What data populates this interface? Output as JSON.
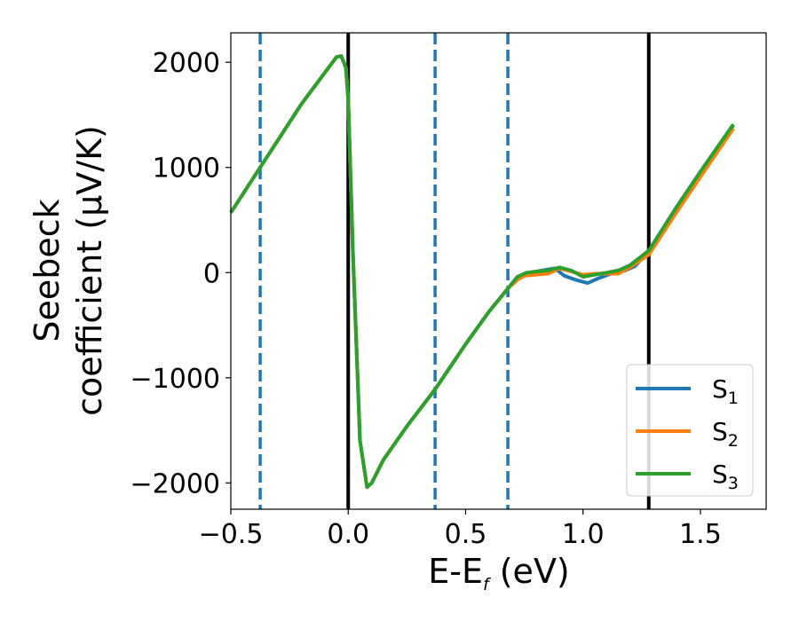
{
  "chart_data": {
    "type": "line",
    "xlabel": {
      "main": "E-E",
      "sub": "f",
      "unit": " (eV)"
    },
    "ylabel": {
      "line1": "Seebeck",
      "line2": "coefficient  (μV/K)"
    },
    "xlim": [
      -0.5,
      1.78
    ],
    "ylim": [
      -2250,
      2280
    ],
    "xticks": [
      -0.5,
      0.0,
      0.5,
      1.0,
      1.5
    ],
    "xtick_labels": [
      "−0.5",
      "0.0",
      "0.5",
      "1.0",
      "1.5"
    ],
    "yticks": [
      -2000,
      -1000,
      0,
      1000,
      2000
    ],
    "ytick_labels": [
      "−2000",
      "−1000",
      "0",
      "1000",
      "2000"
    ],
    "grid": false,
    "legend_position": "bottom-right",
    "vlines": [
      {
        "x": -0.375,
        "style": "dashed",
        "color": "#1f77b4"
      },
      {
        "x": 0.0,
        "style": "solid",
        "color": "#000000"
      },
      {
        "x": 0.37,
        "style": "dashed",
        "color": "#1f77b4"
      },
      {
        "x": 0.68,
        "style": "dashed",
        "color": "#1f77b4"
      },
      {
        "x": 1.28,
        "style": "solid",
        "color": "#000000"
      }
    ],
    "series": [
      {
        "name": "S",
        "sub": "1",
        "color": "#1f77b4",
        "x": [
          -0.5,
          -0.375,
          -0.2,
          -0.05,
          -0.03,
          -0.01,
          0.0,
          0.02,
          0.05,
          0.08,
          0.1,
          0.15,
          0.25,
          0.37,
          0.5,
          0.6,
          0.68,
          0.72,
          0.75,
          0.8,
          0.85,
          0.88,
          0.92,
          0.97,
          1.02,
          1.07,
          1.12,
          1.18,
          1.22,
          1.28,
          1.4,
          1.5,
          1.64
        ],
        "y": [
          570,
          1000,
          1600,
          2050,
          2060,
          1950,
          1650,
          200,
          -1600,
          -2040,
          -2000,
          -1780,
          -1460,
          -1110,
          -680,
          -370,
          -150,
          -60,
          -10,
          10,
          30,
          40,
          -30,
          -70,
          -100,
          -50,
          -10,
          20,
          60,
          200,
          620,
          950,
          1400
        ]
      },
      {
        "name": "S",
        "sub": "2",
        "color": "#ff7f0e",
        "x": [
          -0.5,
          -0.375,
          -0.2,
          -0.05,
          -0.03,
          -0.01,
          0.0,
          0.02,
          0.05,
          0.08,
          0.1,
          0.15,
          0.25,
          0.37,
          0.5,
          0.6,
          0.68,
          0.72,
          0.75,
          0.8,
          0.85,
          0.9,
          0.95,
          1.0,
          1.05,
          1.1,
          1.15,
          1.2,
          1.28,
          1.4,
          1.5,
          1.64
        ],
        "y": [
          570,
          1000,
          1600,
          2050,
          2060,
          1950,
          1650,
          200,
          -1600,
          -2040,
          -2000,
          -1780,
          -1460,
          -1110,
          -680,
          -370,
          -150,
          -70,
          -30,
          -20,
          -10,
          40,
          10,
          -20,
          -10,
          -10,
          -10,
          50,
          170,
          580,
          910,
          1370
        ]
      },
      {
        "name": "S",
        "sub": "3",
        "color": "#2ca02c",
        "x": [
          -0.5,
          -0.375,
          -0.2,
          -0.05,
          -0.03,
          -0.01,
          0.0,
          0.02,
          0.05,
          0.08,
          0.1,
          0.15,
          0.25,
          0.37,
          0.5,
          0.6,
          0.68,
          0.72,
          0.76,
          0.8,
          0.85,
          0.9,
          0.95,
          1.0,
          1.05,
          1.1,
          1.15,
          1.2,
          1.28,
          1.4,
          1.5,
          1.64
        ],
        "y": [
          570,
          1000,
          1600,
          2050,
          2060,
          1950,
          1650,
          200,
          -1600,
          -2040,
          -2000,
          -1780,
          -1460,
          -1110,
          -680,
          -370,
          -150,
          -40,
          0,
          10,
          20,
          50,
          20,
          -40,
          -20,
          0,
          20,
          70,
          210,
          630,
          960,
          1410
        ]
      }
    ]
  }
}
